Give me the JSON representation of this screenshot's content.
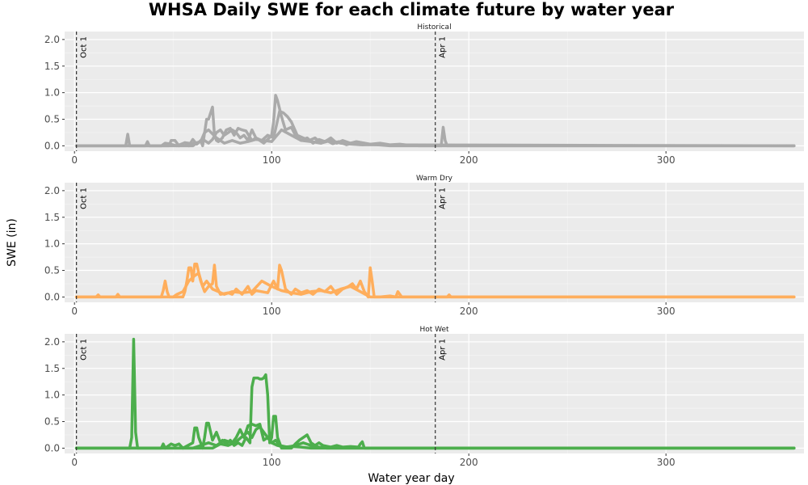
{
  "chart_data": {
    "type": "line",
    "title": "WHSA Daily SWE for each climate future by water year",
    "xlabel": "Water year day",
    "ylabel": "SWE (in)",
    "xlim": [
      -5,
      370
    ],
    "ylim": [
      -0.1,
      2.15
    ],
    "x_ticks": [
      0,
      100,
      200,
      300
    ],
    "y_ticks": [
      0.0,
      0.5,
      1.0,
      1.5,
      2.0
    ],
    "x_tick_labels": [
      "0",
      "100",
      "200",
      "300"
    ],
    "y_tick_labels": [
      "0.0",
      "0.5",
      "1.0",
      "1.5",
      "2.0"
    ],
    "grid": true,
    "reference_lines": [
      {
        "x": 1,
        "label": "Oct 1"
      },
      {
        "x": 183,
        "label": "Apr 1"
      }
    ],
    "panels": [
      {
        "name": "Historical",
        "color": "#aaaaaa",
        "series": [
          {
            "x": [
              1,
              26,
              27,
              28,
              36,
              37,
              38,
              48,
              49,
              51,
              53,
              56,
              58,
              60,
              62,
              64,
              65,
              67,
              68,
              70,
              71,
              72,
              73,
              75,
              77,
              79,
              81,
              83,
              85,
              87,
              90,
              92,
              94,
              96,
              98,
              100,
              101,
              102,
              103,
              105,
              107,
              110,
              112,
              115,
              118,
              121,
              124,
              127,
              130,
              133,
              136,
              140,
              143,
              150,
              155,
              160,
              165,
              170,
              175,
              180,
              186,
              187,
              188,
              189,
              190,
              250,
              365
            ],
            "y": [
              0,
              0,
              0.22,
              0,
              0,
              0.08,
              0,
              0,
              0.1,
              0.1,
              0,
              0.06,
              0,
              0.12,
              0.03,
              0.1,
              0,
              0.5,
              0.5,
              0.73,
              0.2,
              0.1,
              0.08,
              0.15,
              0.3,
              0.33,
              0.2,
              0.33,
              0.3,
              0.28,
              0.1,
              0.15,
              0.1,
              0.05,
              0.12,
              0.2,
              0.45,
              0.95,
              0.85,
              0.55,
              0.3,
              0.35,
              0.2,
              0.1,
              0.15,
              0.05,
              0.12,
              0.08,
              0.15,
              0.05,
              0.1,
              0.05,
              0.08,
              0.03,
              0.05,
              0.02,
              0.03,
              0.01,
              0,
              0,
              0,
              0.35,
              0.1,
              0,
              0,
              0,
              0
            ]
          },
          {
            "x": [
              1,
              60,
              62,
              64,
              66,
              68,
              70,
              72,
              74,
              76,
              78,
              80,
              82,
              84,
              86,
              88,
              90,
              92,
              95,
              98,
              101,
              104,
              106,
              108,
              110,
              113,
              116,
              119,
              122,
              125,
              128,
              131,
              134,
              138,
              142,
              146,
              150,
              160,
              365
            ],
            "y": [
              0,
              0,
              0.05,
              0.08,
              0.1,
              0.05,
              0.12,
              0.25,
              0.3,
              0.2,
              0.25,
              0.3,
              0.25,
              0.15,
              0.2,
              0.1,
              0.3,
              0.15,
              0.1,
              0.2,
              0.15,
              0.65,
              0.62,
              0.55,
              0.45,
              0.2,
              0.15,
              0.1,
              0.15,
              0.05,
              0.1,
              0.04,
              0.08,
              0.02,
              0.06,
              0.02,
              0.03,
              0,
              0
            ]
          },
          {
            "x": [
              1,
              44,
              46,
              48,
              52,
              56,
              60,
              64,
              66,
              68,
              72,
              76,
              80,
              84,
              88,
              92,
              96,
              100,
              105,
              110,
              115,
              120,
              125,
              130,
              135,
              140,
              145,
              365
            ],
            "y": [
              0,
              0,
              0.05,
              0.04,
              0,
              0.06,
              0.04,
              0.08,
              0.25,
              0.3,
              0.15,
              0.05,
              0.1,
              0.05,
              0.08,
              0.12,
              0.1,
              0.08,
              0.3,
              0.2,
              0.1,
              0.08,
              0.05,
              0.1,
              0.05,
              0.03,
              0.02,
              0
            ]
          }
        ]
      },
      {
        "name": "Warm Dry",
        "color": "#ffae5c",
        "series": [
          {
            "x": [
              1,
              11,
              12,
              13,
              21,
              22,
              23,
              44,
              45,
              46,
              47,
              48,
              55,
              56,
              57,
              58,
              59,
              60,
              61,
              62,
              63,
              64,
              66,
              68,
              70,
              71,
              72,
              74,
              78,
              80,
              82,
              85,
              88,
              90,
              92,
              95,
              98,
              101,
              103,
              104,
              105,
              107,
              110,
              112,
              115,
              118,
              121,
              124,
              127,
              130,
              133,
              136,
              139,
              141,
              143,
              145,
              147,
              149,
              150,
              151,
              152,
              155,
              160,
              163,
              164,
              166,
              170,
              180,
              189,
              190,
              191,
              365
            ],
            "y": [
              0,
              0,
              0.04,
              0,
              0,
              0.05,
              0,
              0,
              0.12,
              0.3,
              0.1,
              0,
              0,
              0.1,
              0.3,
              0.55,
              0.55,
              0.3,
              0.62,
              0.62,
              0.45,
              0.3,
              0.1,
              0.2,
              0.25,
              0.6,
              0.2,
              0.05,
              0.08,
              0.05,
              0.15,
              0.05,
              0.2,
              0.05,
              0.12,
              0.1,
              0.08,
              0.3,
              0.15,
              0.6,
              0.5,
              0.15,
              0.05,
              0.15,
              0.08,
              0.12,
              0.05,
              0.15,
              0.1,
              0.2,
              0.05,
              0.15,
              0.2,
              0.25,
              0.15,
              0.3,
              0.1,
              0,
              0.55,
              0.3,
              0,
              0,
              0.02,
              0,
              0.1,
              0,
              0,
              0,
              0,
              0.04,
              0,
              0
            ]
          },
          {
            "x": [
              1,
              50,
              52,
              55,
              58,
              61,
              63,
              65,
              67,
              70,
              73,
              76,
              80,
              85,
              90,
              95,
              100,
              105,
              110,
              115,
              120,
              125,
              130,
              135,
              140,
              145,
              150,
              365
            ],
            "y": [
              0,
              0,
              0.05,
              0.1,
              0.3,
              0.4,
              0.45,
              0.2,
              0.3,
              0.15,
              0.1,
              0.05,
              0.1,
              0.08,
              0.1,
              0.3,
              0.2,
              0.12,
              0.08,
              0.05,
              0.1,
              0.12,
              0.08,
              0.15,
              0.2,
              0.1,
              0,
              0
            ]
          }
        ]
      },
      {
        "name": "Hot Wet",
        "color": "#4cae4c",
        "series": [
          {
            "x": [
              1,
              28,
              29,
              30,
              31,
              32,
              44,
              45,
              46,
              49,
              51,
              53,
              55,
              60,
              61,
              62,
              63,
              65,
              66,
              67,
              68,
              70,
              72,
              74,
              75,
              77,
              79,
              81,
              83,
              85,
              87,
              89,
              90,
              91,
              92,
              93,
              94,
              95,
              96,
              97,
              98,
              99,
              100,
              101,
              102,
              103,
              104,
              105,
              110,
              112,
              114,
              116,
              118,
              120,
              122,
              124,
              126,
              130,
              133,
              136,
              140,
              144,
              145,
              146,
              147,
              365
            ],
            "y": [
              0,
              0,
              0.2,
              2.05,
              0.3,
              0,
              0,
              0.08,
              0,
              0.08,
              0.05,
              0.08,
              0,
              0.1,
              0.38,
              0.38,
              0.2,
              0,
              0.2,
              0.47,
              0.47,
              0.15,
              0.3,
              0.1,
              0.15,
              0.08,
              0.15,
              0.05,
              0.1,
              0.05,
              0.2,
              0.1,
              1.15,
              1.32,
              1.32,
              1.32,
              1.3,
              1.3,
              1.32,
              1.38,
              1.0,
              0.1,
              0.2,
              0.6,
              0.6,
              0.2,
              0.1,
              0,
              0,
              0.08,
              0.15,
              0.2,
              0.25,
              0.1,
              0.05,
              0.1,
              0.05,
              0.02,
              0.05,
              0.02,
              0.03,
              0.02,
              0.08,
              0.12,
              0,
              0
            ]
          },
          {
            "x": [
              1,
              60,
              64,
              68,
              72,
              76,
              80,
              82,
              84,
              86,
              88,
              90,
              92,
              94,
              96,
              98,
              100,
              102,
              104,
              108,
              112,
              116,
              120,
              124,
              128,
              365
            ],
            "y": [
              0,
              0,
              0.05,
              0.1,
              0.05,
              0.15,
              0.1,
              0.2,
              0.35,
              0.2,
              0.42,
              0.45,
              0.42,
              0.45,
              0.15,
              0.2,
              0.1,
              0.15,
              0.05,
              0.02,
              0.05,
              0.1,
              0.05,
              0.02,
              0,
              0
            ]
          },
          {
            "x": [
              1,
              70,
              74,
              78,
              82,
              86,
              88,
              90,
              92,
              94,
              96,
              98,
              100,
              103,
              106,
              110,
              115,
              120,
              365
            ],
            "y": [
              0,
              0,
              0.08,
              0.05,
              0.12,
              0.25,
              0.3,
              0.2,
              0.35,
              0.4,
              0.3,
              0.2,
              0.1,
              0.05,
              0.02,
              0.03,
              0.02,
              0,
              0
            ]
          }
        ]
      }
    ]
  }
}
